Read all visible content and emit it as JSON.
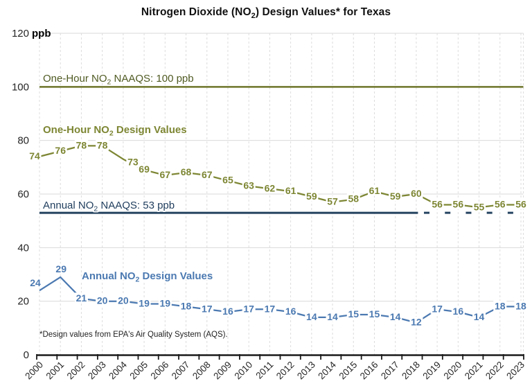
{
  "title": {
    "parts": [
      "Nitrogen Dioxide (NO",
      "2",
      ") Design Values* for Texas"
    ]
  },
  "footnote": "*Design values from EPA's Air Quality System (AQS).",
  "y_axis": {
    "unit_label": "ppb",
    "ticks": [
      0,
      20,
      40,
      60,
      80,
      100,
      120
    ]
  },
  "x_axis": {
    "years": [
      "2000",
      "2001",
      "2002",
      "2003",
      "2004",
      "2005",
      "2006",
      "2007",
      "2008",
      "2009",
      "2010",
      "2011",
      "2012",
      "2013",
      "2014",
      "2015",
      "2016",
      "2017",
      "2018",
      "2019",
      "2020",
      "2021",
      "2022",
      "2023"
    ]
  },
  "chart_data": {
    "type": "line",
    "title": "Nitrogen Dioxide (NO2) Design Values* for Texas",
    "xlabel": "",
    "ylabel": "ppb",
    "ylim": [
      0,
      120
    ],
    "grid": true,
    "legend_position": "inline-annotations",
    "categories": [
      "2000",
      "2001",
      "2002",
      "2003",
      "2004",
      "2005",
      "2006",
      "2007",
      "2008",
      "2009",
      "2010",
      "2011",
      "2012",
      "2013",
      "2014",
      "2015",
      "2016",
      "2017",
      "2018",
      "2019",
      "2020",
      "2021",
      "2022",
      "2023"
    ],
    "series": [
      {
        "name": "One-Hour NO2 Design Values",
        "color": "#7D8633",
        "values": [
          74,
          76,
          78,
          78,
          73,
          69,
          67,
          68,
          67,
          65,
          63,
          62,
          61,
          59,
          57,
          58,
          61,
          59,
          60,
          56,
          56,
          55,
          56,
          56
        ],
        "annotation": {
          "parts": [
            "One-Hour NO",
            "2",
            " Design Values"
          ],
          "x": 62,
          "baseline": 192,
          "bold": true
        },
        "label_offsets": {
          "0": [
            -7,
            -1
          ],
          "4": [
            14,
            4
          ]
        }
      },
      {
        "name": "Annual NO2 Design Values",
        "color": "#4B79B1",
        "values": [
          24,
          29,
          21,
          20,
          20,
          19,
          19,
          18,
          17,
          16,
          17,
          17,
          16,
          14,
          14,
          15,
          15,
          14,
          12,
          17,
          16,
          14,
          18,
          18
        ],
        "annotation": {
          "parts": [
            "Annual NO",
            "2",
            " Design Values"
          ],
          "x": 118,
          "baseline": 403,
          "bold": true
        },
        "label_offsets": {
          "0": [
            -6,
            -11
          ],
          "1": [
            1,
            -12
          ]
        }
      }
    ],
    "reference_lines": [
      {
        "name": "one-hour-naaqs",
        "value": 100,
        "line_color": "#6C7428",
        "text_color": "#4F5A22",
        "annotation": {
          "parts": [
            "One-Hour NO",
            "2",
            " NAAQS: 100 ppb"
          ],
          "x": 62,
          "baseline": 118,
          "bold": false
        },
        "dashed_after_index": null
      },
      {
        "name": "annual-naaqs",
        "value": 53,
        "line_color": "#23425F",
        "text_color": "#1E3C5C",
        "annotation": {
          "parts": [
            "Annual NO",
            "2",
            " NAAQS: 53 ppb"
          ],
          "x": 62,
          "baseline": 301,
          "bold": false
        },
        "dashed_after_index": 18
      }
    ]
  }
}
